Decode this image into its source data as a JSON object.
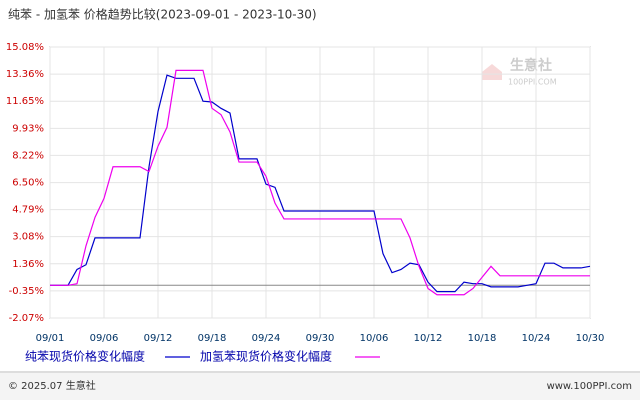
{
  "chart_data": {
    "type": "line",
    "title": "纯苯 - 加氢苯 价格趋势比较(2023-09-01 - 2023-10-30)",
    "watermark": "生意社",
    "watermark_sub": "100PPI.COM",
    "footer_left": "© 2025.07 生意社",
    "footer_right": "www.100PPI.com",
    "grid": true,
    "categories": [
      "09/01",
      null,
      null,
      null,
      null,
      null,
      "09/06",
      null,
      null,
      null,
      null,
      null,
      "09/12",
      null,
      null,
      null,
      null,
      null,
      "09/18",
      null,
      null,
      null,
      null,
      null,
      "09/24",
      null,
      null,
      null,
      null,
      null,
      "09/30",
      null,
      null,
      null,
      null,
      null,
      "10/06",
      null,
      null,
      null,
      null,
      null,
      "10/12",
      null,
      null,
      null,
      null,
      null,
      "10/18",
      null,
      null,
      null,
      null,
      null,
      "10/24",
      null,
      null,
      null,
      null,
      null,
      "10/30"
    ],
    "series": [
      {
        "name": "纯苯现货价格变化幅度",
        "color": "#0000cc",
        "values": [
          0,
          0,
          0,
          1,
          1.3,
          3,
          3,
          3,
          3,
          3,
          3,
          7.5,
          11,
          13.3,
          13.1,
          13.1,
          13.1,
          11.65,
          11.6,
          11.2,
          10.9,
          8,
          8,
          8,
          6.4,
          6.2,
          4.7,
          4.7,
          4.7,
          4.7,
          4.7,
          4.7,
          4.7,
          4.7,
          4.7,
          4.7,
          4.7,
          2,
          0.8,
          1,
          1.4,
          1.3,
          0.2,
          -0.4,
          -0.4,
          -0.4,
          0.2,
          0.1,
          0.1,
          -0.1,
          -0.1,
          -0.1,
          -0.1,
          0,
          0.1,
          1.4,
          1.4,
          1.1,
          1.1,
          1.1,
          1.2
        ]
      },
      {
        "name": "加氢苯现货价格变化幅度",
        "color": "#ee00ee",
        "values": [
          0,
          0,
          0,
          0.1,
          2.5,
          4.3,
          5.5,
          7.5,
          7.5,
          7.5,
          7.5,
          7.2,
          8.8,
          10,
          13.6,
          13.6,
          13.6,
          13.6,
          11.2,
          10.8,
          9.7,
          7.8,
          7.8,
          7.8,
          6.9,
          5.2,
          4.2,
          4.2,
          4.2,
          4.2,
          4.2,
          4.2,
          4.2,
          4.2,
          4.2,
          4.2,
          4.2,
          4.2,
          4.2,
          4.2,
          3,
          1.2,
          -0.2,
          -0.6,
          -0.6,
          -0.6,
          -0.6,
          -0.2,
          0.5,
          1.2,
          0.6,
          0.6,
          0.6,
          0.6,
          0.6,
          0.6,
          0.6,
          0.6,
          0.6,
          0.6,
          0.6
        ]
      }
    ],
    "ylim": [
      -2.07,
      15.08
    ],
    "yticks": [
      {
        "value": -2.07,
        "label": "-2.07%"
      },
      {
        "value": -0.35,
        "label": "-0.35%"
      },
      {
        "value": 1.36,
        "label": "1.36%"
      },
      {
        "value": 3.08,
        "label": "3.08%"
      },
      {
        "value": 4.79,
        "label": "4.79%"
      },
      {
        "value": 6.5,
        "label": "6.50%"
      },
      {
        "value": 8.22,
        "label": "8.22%"
      },
      {
        "value": 9.93,
        "label": "9.93%"
      },
      {
        "value": 11.65,
        "label": "11.65%"
      },
      {
        "value": 13.36,
        "label": "13.36%"
      },
      {
        "value": 15.08,
        "label": "15.08%"
      }
    ]
  }
}
